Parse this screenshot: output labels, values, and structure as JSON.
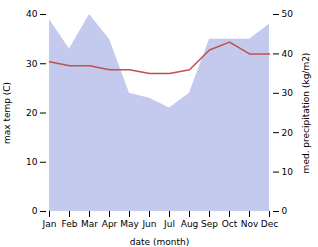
{
  "chart_data": {
    "type": "line",
    "categories": [
      "Jan",
      "Feb",
      "Mar",
      "Apr",
      "May",
      "Jun",
      "Jul",
      "Aug",
      "Sep",
      "Oct",
      "Nov",
      "Dec"
    ],
    "series": [
      {
        "type": "area",
        "color": "#b0b8e8",
        "values": [
          39,
          33,
          40,
          35,
          24,
          23,
          21,
          24,
          35,
          35,
          35,
          38
        ]
      },
      {
        "type": "line",
        "color": "#c0504d",
        "axis": "y2",
        "values": [
          38,
          37,
          37,
          36,
          36,
          35,
          35,
          36,
          41,
          43,
          40,
          40
        ]
      }
    ],
    "xlabel": "date (month)",
    "ylabel": "max temp (C)",
    "y2label": "med. precipitation (kg/m2)",
    "ylim": [
      0,
      40
    ],
    "yticks": [
      0,
      10,
      20,
      30,
      40
    ],
    "y2lim": [
      0,
      50
    ],
    "y2ticks": [
      0,
      10,
      20,
      30,
      40,
      50
    ]
  }
}
